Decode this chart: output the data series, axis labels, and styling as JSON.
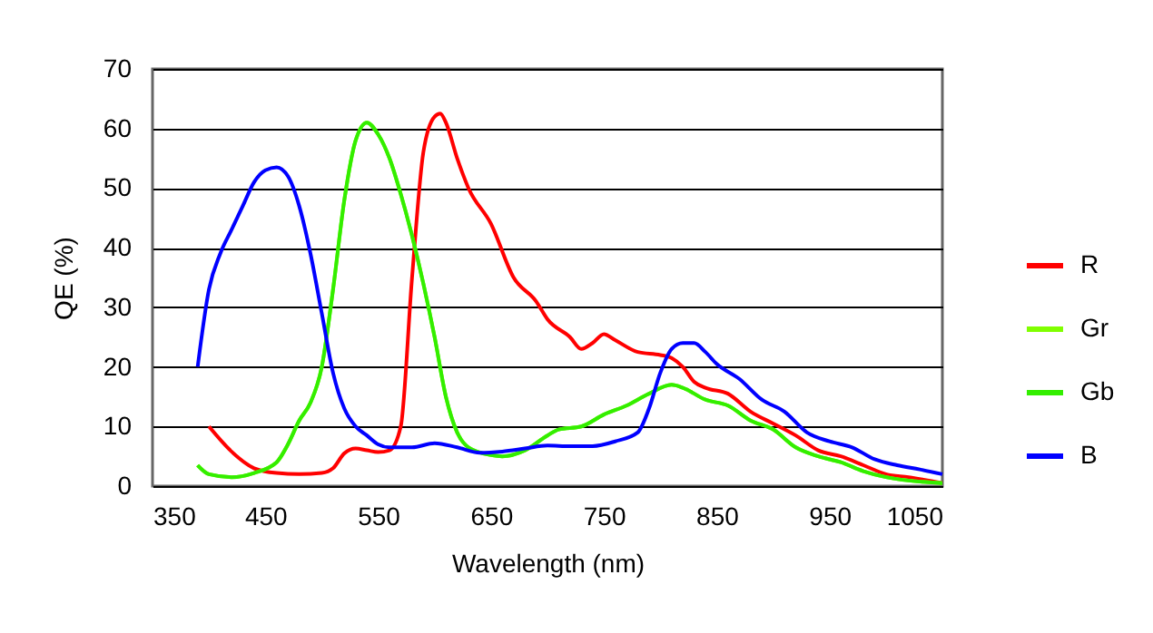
{
  "chart_data": {
    "type": "line",
    "xlabel": "Wavelength (nm)",
    "ylabel": "QE (%)",
    "xlim": [
      350,
      1050
    ],
    "xticks": [
      350,
      450,
      550,
      650,
      750,
      850,
      950,
      1050
    ],
    "ylim": [
      0,
      70
    ],
    "yticks": [
      0,
      10,
      20,
      30,
      40,
      50,
      60,
      70
    ],
    "grid": "y",
    "legend": "right",
    "marker": "none",
    "line_style": "solid",
    "series": [
      {
        "name": "R",
        "color": "#ff0000",
        "x": [
          400,
          420,
          440,
          460,
          480,
          500,
          510,
          520,
          530,
          540,
          550,
          560,
          570,
          580,
          590,
          600,
          605,
          610,
          620,
          630,
          650,
          670,
          690,
          700,
          720,
          730,
          740,
          750,
          760,
          780,
          800,
          810,
          820,
          830,
          840,
          860,
          880,
          900,
          920,
          940,
          960,
          980,
          1000,
          1020,
          1050
        ],
        "values": [
          10,
          5.8,
          3,
          2.2,
          2,
          2.2,
          3,
          5.5,
          6.3,
          6,
          5.7,
          6,
          10,
          35,
          56,
          62,
          62.5,
          61,
          55,
          50,
          44,
          35,
          31,
          28,
          25,
          23,
          24,
          25.5,
          24.5,
          22.5,
          22,
          21.5,
          20,
          17.5,
          16.5,
          15.5,
          12.5,
          10.5,
          8.5,
          6,
          5,
          3.5,
          2,
          1.5,
          0.5
        ]
      },
      {
        "name": "Gr",
        "color": "#80ff00",
        "x": [
          390,
          400,
          420,
          440,
          460,
          470,
          480,
          490,
          500,
          510,
          520,
          530,
          540,
          550,
          560,
          570,
          580,
          590,
          600,
          610,
          620,
          630,
          650,
          660,
          680,
          700,
          710,
          730,
          750,
          770,
          790,
          810,
          820,
          840,
          860,
          880,
          900,
          920,
          940,
          960,
          980,
          1000,
          1050
        ],
        "values": [
          3.5,
          2,
          1.5,
          2.2,
          4,
          7,
          11,
          14,
          20,
          33,
          48,
          58,
          61,
          59,
          55,
          49,
          42,
          34,
          25,
          15,
          9,
          6.5,
          5.2,
          5,
          6,
          8.5,
          9.5,
          10,
          12,
          13.5,
          15.5,
          17,
          16.5,
          14.5,
          13.5,
          11,
          9.5,
          6.5,
          5,
          4,
          2.5,
          1.5,
          0.5
        ]
      },
      {
        "name": "Gb",
        "color": "#33ee00",
        "x": [
          390,
          400,
          420,
          440,
          460,
          470,
          480,
          490,
          500,
          510,
          520,
          530,
          540,
          550,
          560,
          570,
          580,
          590,
          600,
          610,
          620,
          630,
          650,
          660,
          680,
          700,
          710,
          730,
          750,
          770,
          790,
          810,
          820,
          840,
          860,
          880,
          900,
          920,
          940,
          960,
          980,
          1000,
          1050
        ],
        "values": [
          3.5,
          2,
          1.5,
          2.2,
          4,
          7,
          11,
          14,
          20,
          33,
          48,
          58,
          61,
          59,
          55,
          49,
          42,
          34,
          25,
          15,
          9,
          6.5,
          5.2,
          5,
          6,
          8.5,
          9.5,
          10,
          12,
          13.5,
          15.5,
          17,
          16.5,
          14.5,
          13.5,
          11,
          9.5,
          6.5,
          5,
          4,
          2.5,
          1.5,
          0.5
        ]
      },
      {
        "name": "B",
        "color": "#0000ff",
        "x": [
          390,
          400,
          410,
          420,
          430,
          440,
          450,
          460,
          470,
          480,
          490,
          500,
          510,
          520,
          530,
          540,
          550,
          560,
          580,
          600,
          620,
          640,
          660,
          680,
          700,
          720,
          740,
          760,
          780,
          790,
          800,
          810,
          820,
          830,
          840,
          850,
          870,
          890,
          910,
          930,
          950,
          970,
          990,
          1010,
          1030,
          1050
        ],
        "values": [
          20,
          33,
          39,
          43,
          47,
          51,
          53,
          53.5,
          52,
          47,
          39,
          29,
          19,
          13,
          10,
          8.5,
          7,
          6.5,
          6.5,
          7.2,
          6.5,
          5.6,
          5.8,
          6.3,
          6.8,
          6.7,
          6.7,
          7.5,
          9,
          13,
          19,
          23,
          24,
          24,
          22.5,
          20.5,
          18,
          14.5,
          12.5,
          9,
          7.5,
          6.5,
          4.5,
          3.5,
          2.8,
          2
        ]
      }
    ]
  }
}
